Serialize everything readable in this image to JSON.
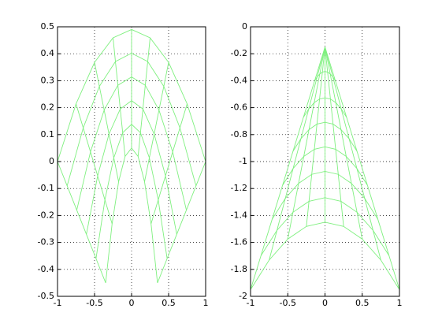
{
  "chart_data": [
    {
      "type": "mesh",
      "color": "#7ff07f",
      "grid": true,
      "xlim": [
        -1,
        1
      ],
      "ylim": [
        -0.5,
        0.5
      ],
      "xticks": [
        -1,
        -0.5,
        0,
        0.5,
        1
      ],
      "yticks": [
        -0.5,
        -0.4,
        -0.3,
        -0.2,
        -0.1,
        0,
        0.1,
        0.2,
        0.3,
        0.4,
        0.5
      ],
      "x": [
        [
          -1,
          -0.75,
          -0.5,
          -0.25,
          0,
          0.25,
          0.5,
          0.75,
          1
        ],
        [
          -0.87,
          -0.653,
          -0.435,
          -0.218,
          0,
          0.218,
          0.435,
          0.653,
          0.87
        ],
        [
          -0.74,
          -0.555,
          -0.37,
          -0.185,
          0,
          0.185,
          0.37,
          0.555,
          0.74
        ],
        [
          -0.61,
          -0.458,
          -0.305,
          -0.153,
          0,
          0.153,
          0.305,
          0.458,
          0.61
        ],
        [
          -0.48,
          -0.36,
          -0.24,
          -0.12,
          0,
          0.12,
          0.24,
          0.36,
          0.48
        ],
        [
          -0.35,
          -0.263,
          -0.175,
          -0.088,
          0,
          0.088,
          0.175,
          0.263,
          0.35
        ]
      ],
      "y": [
        [
          0,
          0.214,
          0.368,
          0.459,
          0.49,
          0.459,
          0.368,
          0.214,
          0
        ],
        [
          -0.09,
          0.125,
          0.279,
          0.371,
          0.402,
          0.371,
          0.279,
          0.125,
          -0.09
        ],
        [
          -0.18,
          0.036,
          0.191,
          0.283,
          0.314,
          0.283,
          0.191,
          0.036,
          -0.18
        ],
        [
          -0.27,
          -0.053,
          0.102,
          0.195,
          0.226,
          0.195,
          0.102,
          -0.053,
          -0.27
        ],
        [
          -0.36,
          -0.142,
          0.014,
          0.107,
          0.138,
          0.107,
          0.014,
          -0.142,
          -0.36
        ],
        [
          -0.45,
          -0.231,
          -0.075,
          0.019,
          0.05,
          0.019,
          -0.075,
          -0.231,
          -0.45
        ]
      ]
    },
    {
      "type": "mesh",
      "color": "#7ff07f",
      "grid": true,
      "xlim": [
        -1,
        1
      ],
      "ylim": [
        -2,
        0
      ],
      "xticks": [
        -1,
        -0.5,
        0,
        0.5,
        1
      ],
      "yticks": [
        -2,
        -1.8,
        -1.6,
        -1.4,
        -1.2,
        -1,
        -0.8,
        -0.6,
        -0.4,
        -0.2,
        0
      ],
      "x": [
        [
          0,
          0,
          0,
          0,
          0,
          0,
          0,
          0,
          0
        ],
        [
          -0.14,
          -0.105,
          -0.07,
          -0.035,
          0,
          0.035,
          0.07,
          0.105,
          0.14
        ],
        [
          -0.29,
          -0.218,
          -0.145,
          -0.073,
          0,
          0.073,
          0.145,
          0.218,
          0.29
        ],
        [
          -0.43,
          -0.323,
          -0.215,
          -0.108,
          0,
          0.108,
          0.215,
          0.323,
          0.43
        ],
        [
          -0.57,
          -0.428,
          -0.285,
          -0.143,
          0,
          0.143,
          0.285,
          0.428,
          0.57
        ],
        [
          -0.71,
          -0.533,
          -0.355,
          -0.178,
          0,
          0.178,
          0.355,
          0.533,
          0.71
        ],
        [
          -0.86,
          -0.645,
          -0.43,
          -0.215,
          0,
          0.215,
          0.43,
          0.645,
          0.86
        ],
        [
          -1,
          -0.75,
          -0.5,
          -0.25,
          0,
          0.25,
          0.5,
          0.75,
          1
        ]
      ],
      "y": [
        [
          -0.15,
          -0.15,
          -0.15,
          -0.15,
          -0.15,
          -0.15,
          -0.15,
          -0.15,
          -0.15
        ],
        [
          -0.402,
          -0.371,
          -0.35,
          -0.336,
          -0.332,
          -0.336,
          -0.35,
          -0.371,
          -0.402
        ],
        [
          -0.672,
          -0.609,
          -0.563,
          -0.536,
          -0.527,
          -0.536,
          -0.563,
          -0.609,
          -0.672
        ],
        [
          -0.924,
          -0.83,
          -0.763,
          -0.722,
          -0.709,
          -0.722,
          -0.763,
          -0.83,
          -0.924
        ],
        [
          -1.176,
          -1.051,
          -0.962,
          -0.909,
          -0.891,
          -0.909,
          -0.962,
          -1.051,
          -1.176
        ],
        [
          -1.428,
          -1.273,
          -1.162,
          -1.095,
          -1.073,
          -1.095,
          -1.162,
          -1.273,
          -1.428
        ],
        [
          -1.698,
          -1.51,
          -1.376,
          -1.295,
          -1.268,
          -1.295,
          -1.376,
          -1.51,
          -1.698
        ],
        [
          -1.95,
          -1.731,
          -1.575,
          -1.481,
          -1.45,
          -1.481,
          -1.575,
          -1.731,
          -1.95
        ]
      ]
    }
  ]
}
